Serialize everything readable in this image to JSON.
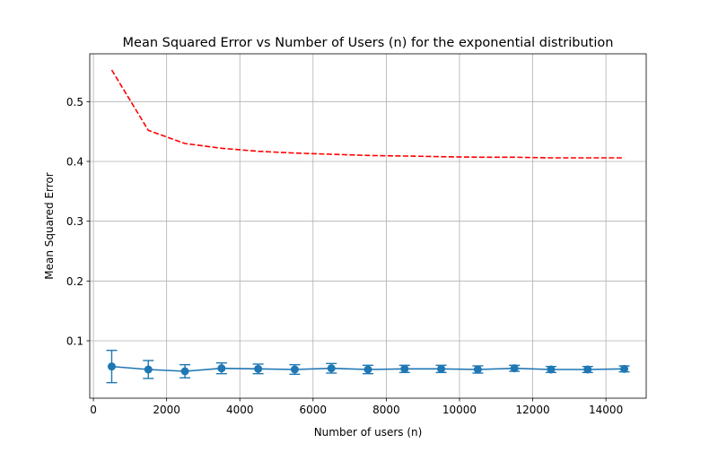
{
  "chart_data": {
    "type": "line",
    "title": "Mean Squared Error vs Number of Users (n) for the exponential distribution",
    "xlabel": "Number of users (n)",
    "ylabel": "Mean Squared Error",
    "xlim": [
      -100,
      15100
    ],
    "ylim": [
      0.004,
      0.58
    ],
    "grid": true,
    "x": [
      500,
      1500,
      2500,
      3500,
      4500,
      5500,
      6500,
      7500,
      8500,
      9500,
      10500,
      11500,
      12500,
      13500,
      14500
    ],
    "xticks": [
      0,
      2000,
      4000,
      6000,
      8000,
      10000,
      12000,
      14000
    ],
    "xtick_labels": [
      "0",
      "2000",
      "4000",
      "6000",
      "8000",
      "10000",
      "12000",
      "14000"
    ],
    "yticks": [
      0.1,
      0.2,
      0.3,
      0.4,
      0.5
    ],
    "ytick_labels": [
      "0.1",
      "0.2",
      "0.3",
      "0.4",
      "0.5"
    ],
    "series": [
      {
        "style": "dashed-line",
        "color": "#ff0000",
        "values": [
          0.553,
          0.452,
          0.43,
          0.422,
          0.417,
          0.414,
          0.412,
          0.41,
          0.409,
          0.408,
          0.407,
          0.407,
          0.406,
          0.406,
          0.406
        ]
      },
      {
        "style": "line-markers-errorbars",
        "color": "#1f77b4",
        "values": [
          0.057,
          0.052,
          0.049,
          0.054,
          0.053,
          0.052,
          0.054,
          0.052,
          0.053,
          0.053,
          0.052,
          0.054,
          0.052,
          0.052,
          0.053
        ],
        "error": [
          0.027,
          0.015,
          0.011,
          0.009,
          0.008,
          0.008,
          0.008,
          0.007,
          0.006,
          0.006,
          0.006,
          0.005,
          0.005,
          0.005,
          0.005
        ]
      }
    ]
  }
}
